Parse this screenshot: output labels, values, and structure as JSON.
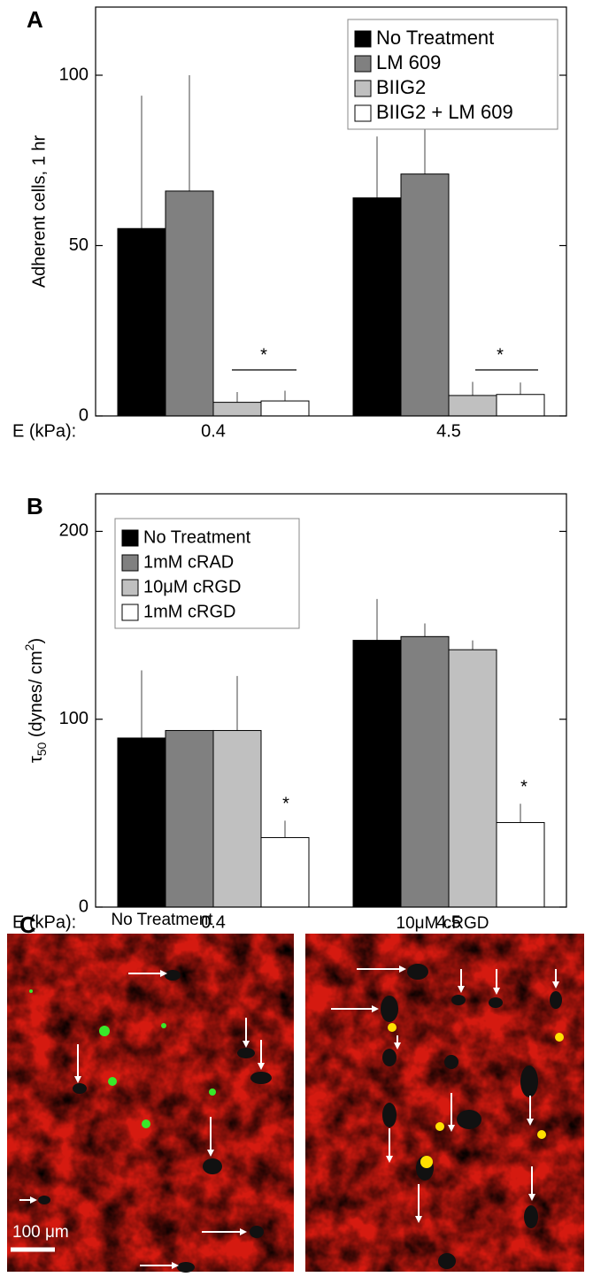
{
  "chart_data": [
    {
      "type": "bar",
      "panel_label": "A",
      "y_label": "Adherent  cells,  1 hr",
      "x_label": "E   (kPa):",
      "categories": [
        "0.4",
        "4.5"
      ],
      "ylim": [
        0,
        120
      ],
      "yticks": [
        0,
        50,
        100
      ],
      "legend": "top-right",
      "series": [
        {
          "name": "No  Treatment",
          "color": "#000000",
          "values": [
            55,
            64
          ],
          "errors": [
            39,
            18
          ]
        },
        {
          "name": "LM 609",
          "color": "#808080",
          "values": [
            66,
            71
          ],
          "errors": [
            34,
            14
          ]
        },
        {
          "name": "BIIG2",
          "color": "#c0c0c0",
          "values": [
            4,
            6
          ],
          "errors": [
            3,
            4
          ]
        },
        {
          "name": "BIIG2  + LM 609",
          "color": "#ffffff",
          "values": [
            4.4,
            6.3
          ],
          "errors": [
            3,
            3.5
          ]
        }
      ],
      "annotations": [
        "*",
        "*"
      ]
    },
    {
      "type": "bar",
      "panel_label": "B",
      "y_label": {
        "symbol": "τ",
        "sub": "50",
        "text": "  (dynes/ cm",
        "sup": "2",
        "end": ")"
      },
      "x_label": "E   (kPa):",
      "categories": [
        "0.4",
        "4.5"
      ],
      "ylim": [
        0,
        220
      ],
      "yticks": [
        0,
        100,
        200
      ],
      "legend": "top-left",
      "series": [
        {
          "name": "No Treatment",
          "color": "#000000",
          "values": [
            90,
            142
          ],
          "errors": [
            36,
            22
          ]
        },
        {
          "name": "1mM  cRAD",
          "color": "#808080",
          "values": [
            94,
            144
          ],
          "errors": [
            0,
            7
          ]
        },
        {
          "name": "10μM  cRGD",
          "color": "#c0c0c0",
          "values": [
            94,
            137
          ],
          "errors": [
            29,
            5
          ]
        },
        {
          "name": "1mM  cRGD",
          "color": "#ffffff",
          "values": [
            37,
            45
          ],
          "errors": [
            9,
            10
          ]
        }
      ],
      "annotations": [
        "*",
        "*"
      ]
    }
  ],
  "panel_c": {
    "letter": "C",
    "images": [
      {
        "title": "No  Treatment"
      },
      {
        "title": "10μM  cRGD"
      }
    ],
    "scale_bar": "100  μm"
  }
}
